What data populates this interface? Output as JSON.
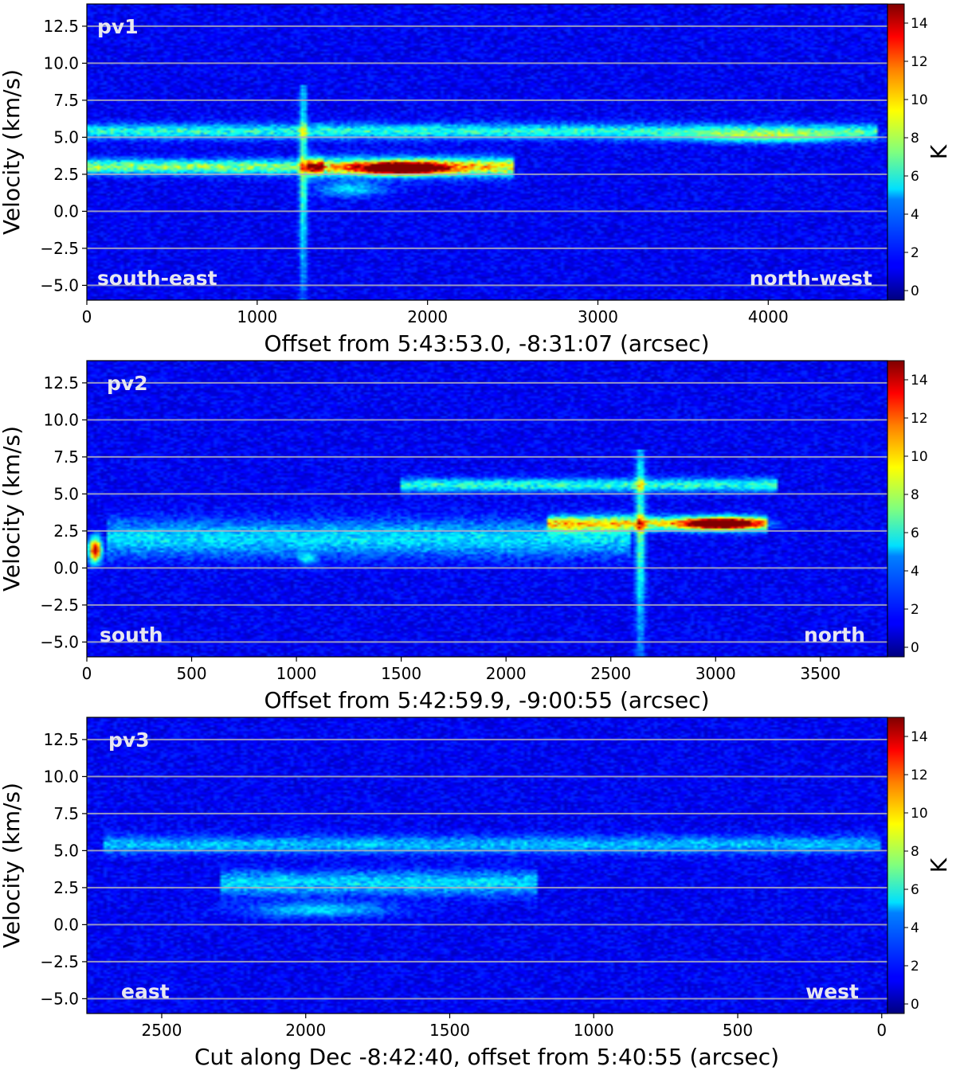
{
  "chart_data": [
    {
      "type": "heatmap",
      "panel_label": "pv1",
      "xlabel": "Offset from 5:43:53.0, -8:31:07 (arcsec)",
      "ylabel": "Velocity (km/s)",
      "xlim": [
        0,
        4700
      ],
      "ylim": [
        -6,
        14
      ],
      "x_ticks": [
        0,
        1000,
        2000,
        3000,
        4000
      ],
      "x_tick_labels": [
        "0",
        "1000",
        "2000",
        "3000",
        "4000"
      ],
      "y_ticks": [
        -5.0,
        -2.5,
        0.0,
        2.5,
        5.0,
        7.5,
        10.0,
        12.5
      ],
      "y_tick_labels": [
        "−5.0",
        "−2.5",
        "0.0",
        "2.5",
        "5.0",
        "7.5",
        "10.0",
        "12.5"
      ],
      "grid_lines_y": [
        -5.0,
        -2.5,
        0.0,
        2.5,
        5.0,
        7.5,
        10.0,
        12.5
      ],
      "left_annotation": "south-east",
      "right_annotation": "north-west",
      "colorbar": {
        "label": "K",
        "range": [
          -0.5,
          15
        ],
        "ticks": [
          0,
          2,
          4,
          6,
          8,
          10,
          12,
          14
        ],
        "tick_labels": [
          "0",
          "2",
          "4",
          "6",
          "8",
          "10",
          "12",
          "14"
        ],
        "colormap": "jet"
      },
      "features": [
        {
          "kind": "band",
          "x0": 0,
          "x1": 4650,
          "v": 5.4,
          "width": 0.5,
          "T": 4.5
        },
        {
          "kind": "band",
          "x0": 0,
          "x1": 1400,
          "v": 3.0,
          "width": 0.5,
          "T": 6
        },
        {
          "kind": "band",
          "x0": 1300,
          "x1": 2500,
          "v": 3.0,
          "width": 0.6,
          "T": 8
        },
        {
          "kind": "blob",
          "x": 1850,
          "v": 2.9,
          "sx": 260,
          "sv": 0.4,
          "T": 14
        },
        {
          "kind": "blob",
          "x": 1550,
          "v": 1.5,
          "sx": 200,
          "sv": 0.5,
          "T": 3.5
        },
        {
          "kind": "spike",
          "x": 1270,
          "v0": -6,
          "v1": 8.5,
          "T": 6
        },
        {
          "kind": "blob",
          "x": 4000,
          "v": 5.0,
          "sx": 500,
          "sv": 0.4,
          "T": 4
        }
      ]
    },
    {
      "type": "heatmap",
      "panel_label": "pv2",
      "xlabel": "Offset from 5:42:59.9, -9:00:55 (arcsec)",
      "ylabel": "Velocity (km/s)",
      "xlim": [
        0,
        3820
      ],
      "ylim": [
        -6,
        14
      ],
      "x_ticks": [
        0,
        500,
        1000,
        1500,
        2000,
        2500,
        3000,
        3500
      ],
      "x_tick_labels": [
        "0",
        "500",
        "1000",
        "1500",
        "2000",
        "2500",
        "3000",
        "3500"
      ],
      "y_ticks": [
        -5.0,
        -2.5,
        0.0,
        2.5,
        5.0,
        7.5,
        10.0,
        12.5
      ],
      "y_tick_labels": [
        "−5.0",
        "−2.5",
        "0.0",
        "2.5",
        "5.0",
        "7.5",
        "10.0",
        "12.5"
      ],
      "grid_lines_y": [
        -5.0,
        -2.5,
        0.0,
        2.5,
        5.0,
        7.5,
        10.0,
        12.5
      ],
      "left_annotation": "south",
      "right_annotation": "north",
      "colorbar": {
        "label": "K",
        "range": [
          -0.5,
          15
        ],
        "ticks": [
          0,
          2,
          4,
          6,
          8,
          10,
          12,
          14
        ],
        "tick_labels": [
          "0",
          "2",
          "4",
          "6",
          "8",
          "10",
          "12",
          "14"
        ],
        "colormap": "jet"
      },
      "features": [
        {
          "kind": "band",
          "x0": 100,
          "x1": 2600,
          "v": 2.0,
          "width": 1.2,
          "T": 3.5
        },
        {
          "kind": "band",
          "x0": 1500,
          "x1": 3300,
          "v": 5.6,
          "width": 0.45,
          "T": 4.5
        },
        {
          "kind": "band",
          "x0": 2200,
          "x1": 3250,
          "v": 3.0,
          "width": 0.5,
          "T": 7
        },
        {
          "kind": "blob",
          "x": 3020,
          "v": 3.0,
          "sx": 170,
          "sv": 0.35,
          "T": 14
        },
        {
          "kind": "spike",
          "x": 2640,
          "v0": -6,
          "v1": 8.0,
          "T": 6
        },
        {
          "kind": "blob",
          "x": 40,
          "v": 1.2,
          "sx": 30,
          "sv": 0.8,
          "T": 13
        },
        {
          "kind": "blob",
          "x": 1050,
          "v": 0.6,
          "sx": 40,
          "sv": 0.4,
          "T": 3.5
        }
      ]
    },
    {
      "type": "heatmap",
      "panel_label": "pv3",
      "xlabel": "Cut along Dec -8:42:40, offset from 5:40:55 (arcsec)",
      "ylabel": "Velocity (km/s)",
      "xlim": [
        2760,
        -20
      ],
      "ylim": [
        -6,
        14
      ],
      "x_ticks": [
        2500,
        2000,
        1500,
        1000,
        500,
        0
      ],
      "x_tick_labels": [
        "2500",
        "2000",
        "1500",
        "1000",
        "500",
        "0"
      ],
      "y_ticks": [
        -5.0,
        -2.5,
        0.0,
        2.5,
        5.0,
        7.5,
        10.0,
        12.5
      ],
      "y_tick_labels": [
        "−5.0",
        "−2.5",
        "0.0",
        "2.5",
        "5.0",
        "7.5",
        "10.0",
        "12.5"
      ],
      "grid_lines_y": [
        -5.0,
        -2.5,
        0.0,
        2.5,
        5.0,
        7.5,
        10.0,
        12.5
      ],
      "left_annotation": "east",
      "right_annotation": "west",
      "colorbar": {
        "label": "K",
        "range": [
          -0.5,
          15
        ],
        "ticks": [
          0,
          2,
          4,
          6,
          8,
          10,
          12,
          14
        ],
        "tick_labels": [
          "0",
          "2",
          "4",
          "6",
          "8",
          "10",
          "12",
          "14"
        ],
        "colormap": "jet"
      },
      "features": [
        {
          "kind": "band",
          "x0": 0,
          "x1": 2700,
          "v": 5.4,
          "width": 0.6,
          "T": 3.0
        },
        {
          "kind": "band",
          "x0": 1200,
          "x1": 2300,
          "v": 2.8,
          "width": 0.8,
          "T": 3.5
        },
        {
          "kind": "blob",
          "x": 1950,
          "v": 1.0,
          "sx": 250,
          "sv": 0.5,
          "T": 3.5
        }
      ]
    }
  ]
}
